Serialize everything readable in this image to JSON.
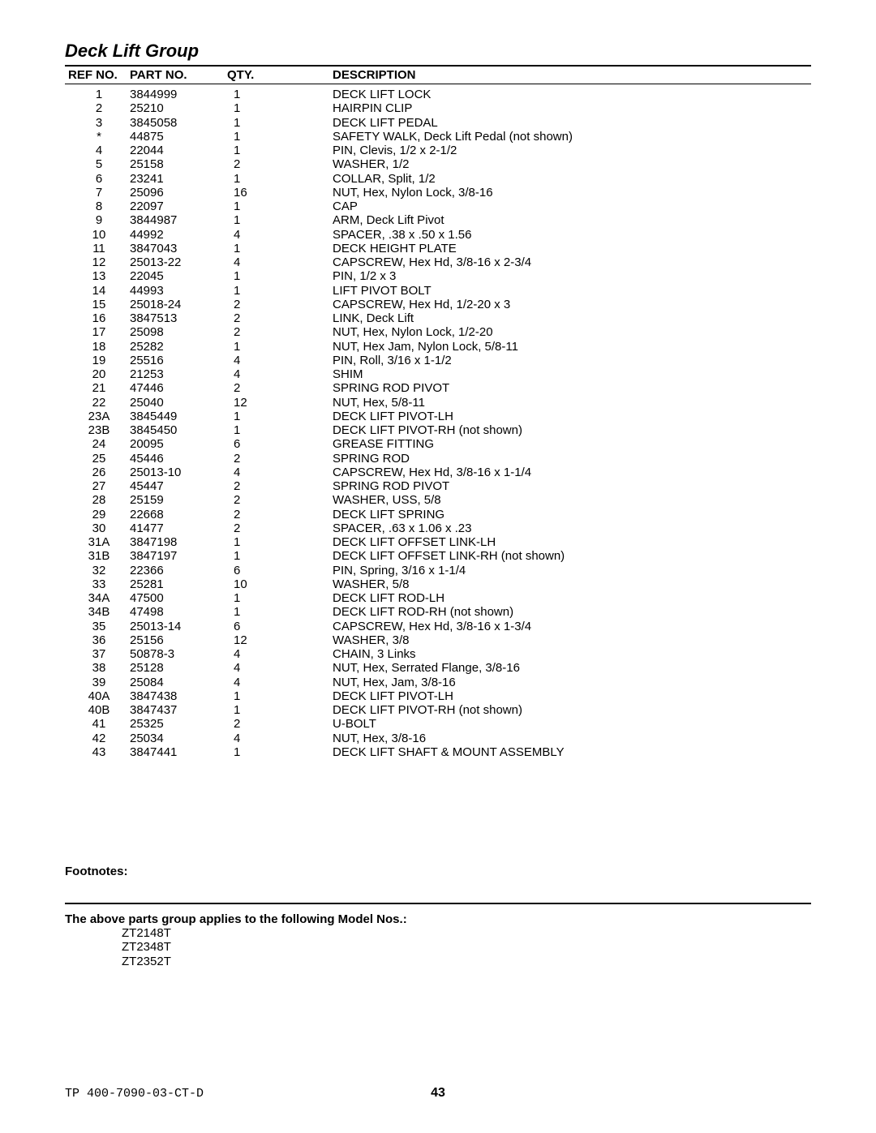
{
  "title": "Deck Lift Group",
  "headers": {
    "ref": "REF NO.",
    "part": "PART NO.",
    "qty": "QTY.",
    "desc": "DESCRIPTION"
  },
  "rows": [
    {
      "ref": "1",
      "part": "3844999",
      "qty": "1",
      "desc": "DECK LIFT LOCK"
    },
    {
      "ref": "2",
      "part": "25210",
      "qty": "1",
      "desc": "HAIRPIN CLIP"
    },
    {
      "ref": "3",
      "part": "3845058",
      "qty": "1",
      "desc": "DECK LIFT PEDAL"
    },
    {
      "ref": "*",
      "part": "44875",
      "qty": "1",
      "desc": "SAFETY WALK, Deck Lift Pedal (not shown)"
    },
    {
      "ref": "4",
      "part": "22044",
      "qty": "1",
      "desc": "PIN, Clevis, 1/2 x 2-1/2"
    },
    {
      "ref": "5",
      "part": "25158",
      "qty": "2",
      "desc": "WASHER, 1/2"
    },
    {
      "ref": "6",
      "part": "23241",
      "qty": "1",
      "desc": "COLLAR, Split, 1/2"
    },
    {
      "ref": "7",
      "part": "25096",
      "qty": "16",
      "desc": "NUT, Hex, Nylon Lock, 3/8-16"
    },
    {
      "ref": "8",
      "part": "22097",
      "qty": "1",
      "desc": "CAP"
    },
    {
      "ref": "9",
      "part": "3844987",
      "qty": "1",
      "desc": "ARM, Deck Lift Pivot"
    },
    {
      "ref": "10",
      "part": "44992",
      "qty": "4",
      "desc": "SPACER, .38 x .50 x 1.56"
    },
    {
      "ref": "11",
      "part": "3847043",
      "qty": "1",
      "desc": "DECK HEIGHT PLATE"
    },
    {
      "ref": "12",
      "part": "25013-22",
      "qty": "4",
      "desc": "CAPSCREW, Hex Hd, 3/8-16 x 2-3/4"
    },
    {
      "ref": "13",
      "part": "22045",
      "qty": "1",
      "desc": "PIN, 1/2 x 3"
    },
    {
      "ref": "14",
      "part": "44993",
      "qty": "1",
      "desc": "LIFT PIVOT BOLT"
    },
    {
      "ref": "15",
      "part": "25018-24",
      "qty": "2",
      "desc": "CAPSCREW, Hex Hd, 1/2-20 x 3"
    },
    {
      "ref": "16",
      "part": "3847513",
      "qty": "2",
      "desc": "LINK, Deck Lift"
    },
    {
      "ref": "17",
      "part": "25098",
      "qty": "2",
      "desc": "NUT, Hex, Nylon Lock, 1/2-20"
    },
    {
      "ref": "18",
      "part": "25282",
      "qty": "1",
      "desc": "NUT, Hex Jam, Nylon Lock, 5/8-11"
    },
    {
      "ref": "19",
      "part": "25516",
      "qty": "4",
      "desc": "PIN, Roll, 3/16 x 1-1/2"
    },
    {
      "ref": "20",
      "part": "21253",
      "qty": "4",
      "desc": "SHIM"
    },
    {
      "ref": "21",
      "part": "47446",
      "qty": "2",
      "desc": "SPRING ROD PIVOT"
    },
    {
      "ref": "22",
      "part": "25040",
      "qty": "12",
      "desc": "NUT, Hex, 5/8-11"
    },
    {
      "ref": "23A",
      "part": "3845449",
      "qty": "1",
      "desc": "DECK LIFT PIVOT-LH"
    },
    {
      "ref": "23B",
      "part": "3845450",
      "qty": "1",
      "desc": "DECK LIFT PIVOT-RH (not shown)"
    },
    {
      "ref": "24",
      "part": "20095",
      "qty": "6",
      "desc": "GREASE FITTING"
    },
    {
      "ref": "25",
      "part": "45446",
      "qty": "2",
      "desc": "SPRING ROD"
    },
    {
      "ref": "26",
      "part": "25013-10",
      "qty": "4",
      "desc": "CAPSCREW, Hex Hd, 3/8-16 x 1-1/4"
    },
    {
      "ref": "27",
      "part": "45447",
      "qty": "2",
      "desc": "SPRING ROD PIVOT"
    },
    {
      "ref": "28",
      "part": "25159",
      "qty": "2",
      "desc": "WASHER, USS, 5/8"
    },
    {
      "ref": "29",
      "part": "22668",
      "qty": "2",
      "desc": "DECK LIFT SPRING"
    },
    {
      "ref": "30",
      "part": "41477",
      "qty": "2",
      "desc": "SPACER, .63 x 1.06 x .23"
    },
    {
      "ref": "31A",
      "part": "3847198",
      "qty": "1",
      "desc": "DECK LIFT OFFSET LINK-LH"
    },
    {
      "ref": "31B",
      "part": "3847197",
      "qty": "1",
      "desc": "DECK LIFT OFFSET LINK-RH (not shown)"
    },
    {
      "ref": "32",
      "part": "22366",
      "qty": "6",
      "desc": "PIN, Spring, 3/16 x 1-1/4"
    },
    {
      "ref": "33",
      "part": "25281",
      "qty": "10",
      "desc": "WASHER, 5/8"
    },
    {
      "ref": "34A",
      "part": "47500",
      "qty": "1",
      "desc": "DECK LIFT ROD-LH"
    },
    {
      "ref": "34B",
      "part": "47498",
      "qty": "1",
      "desc": "DECK LIFT ROD-RH (not shown)"
    },
    {
      "ref": "35",
      "part": "25013-14",
      "qty": "6",
      "desc": "CAPSCREW, Hex Hd, 3/8-16 x 1-3/4"
    },
    {
      "ref": "36",
      "part": "25156",
      "qty": "12",
      "desc": "WASHER, 3/8"
    },
    {
      "ref": "37",
      "part": "50878-3",
      "qty": "4",
      "desc": "CHAIN, 3 Links"
    },
    {
      "ref": "38",
      "part": "25128",
      "qty": "4",
      "desc": "NUT, Hex, Serrated Flange, 3/8-16"
    },
    {
      "ref": "39",
      "part": "25084",
      "qty": "4",
      "desc": "NUT, Hex, Jam, 3/8-16"
    },
    {
      "ref": "40A",
      "part": "3847438",
      "qty": "1",
      "desc": "DECK LIFT PIVOT-LH"
    },
    {
      "ref": "40B",
      "part": "3847437",
      "qty": "1",
      "desc": "DECK LIFT PIVOT-RH (not shown)"
    },
    {
      "ref": "41",
      "part": "25325",
      "qty": "2",
      "desc": "U-BOLT"
    },
    {
      "ref": "42",
      "part": "25034",
      "qty": "4",
      "desc": "NUT, Hex, 3/8-16"
    },
    {
      "ref": "43",
      "part": "3847441",
      "qty": "1",
      "desc": "DECK LIFT SHAFT & MOUNT ASSEMBLY"
    }
  ],
  "footnotes_label": "Footnotes:",
  "models_label": "The above parts group applies to the following Model Nos.:",
  "models": [
    "ZT2148T",
    "ZT2348T",
    "ZT2352T"
  ],
  "doc_number": "TP 400-7090-03-CT-D",
  "page_number": "43"
}
